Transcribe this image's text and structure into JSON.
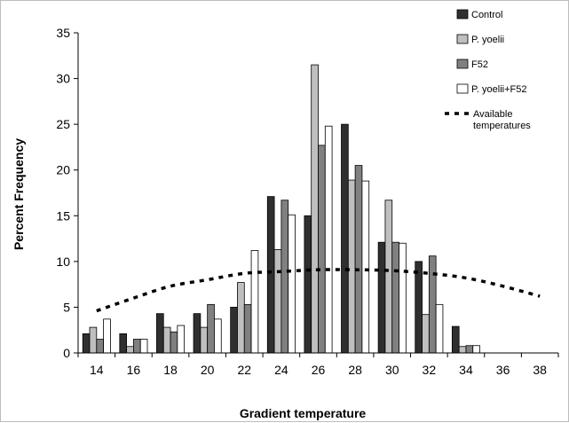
{
  "chart_data": {
    "type": "bar",
    "xlabel": "Gradient temperature",
    "ylabel": "Percent Frequency",
    "ylim": [
      0,
      35
    ],
    "yticks": [
      0,
      5,
      10,
      15,
      20,
      25,
      30,
      35
    ],
    "categories": [
      "14",
      "16",
      "18",
      "20",
      "22",
      "24",
      "26",
      "28",
      "30",
      "32",
      "34",
      "36",
      "38"
    ],
    "series": [
      {
        "name": "Control",
        "color": "#2f2f2f",
        "values": [
          2.1,
          2.1,
          4.3,
          4.3,
          5.0,
          17.1,
          15.0,
          25.0,
          12.1,
          10.0,
          2.9,
          0,
          0
        ]
      },
      {
        "name": "P. yoelii",
        "color": "#bfbfbf",
        "values": [
          2.8,
          0.7,
          2.8,
          2.8,
          7.7,
          11.3,
          31.5,
          18.9,
          16.7,
          4.2,
          0.7,
          0,
          0
        ]
      },
      {
        "name": "F52",
        "color": "#808080",
        "values": [
          1.5,
          1.5,
          2.3,
          5.3,
          5.3,
          16.7,
          22.7,
          20.5,
          12.1,
          10.6,
          0.8,
          0,
          0
        ]
      },
      {
        "name": "P. yoelii+F52",
        "color": "#ffffff",
        "values": [
          3.7,
          1.5,
          3.0,
          3.7,
          11.2,
          15.1,
          24.8,
          18.8,
          12.0,
          5.3,
          0.8,
          0,
          0
        ]
      }
    ],
    "line": {
      "name": "Available temperatures",
      "style": "dashed",
      "color": "#000000",
      "x": [
        14,
        16,
        18,
        20,
        22,
        24,
        26,
        28,
        30,
        32,
        34,
        36,
        38
      ],
      "y": [
        4.6,
        6.0,
        7.3,
        8.0,
        8.7,
        8.9,
        9.1,
        9.1,
        9.0,
        8.7,
        8.2,
        7.3,
        6.2
      ]
    },
    "legend": {
      "position": "top-right",
      "entries": [
        "Control",
        "P. yoelii",
        "F52",
        "P. yoelii+F52",
        "Available temperatures"
      ]
    }
  }
}
